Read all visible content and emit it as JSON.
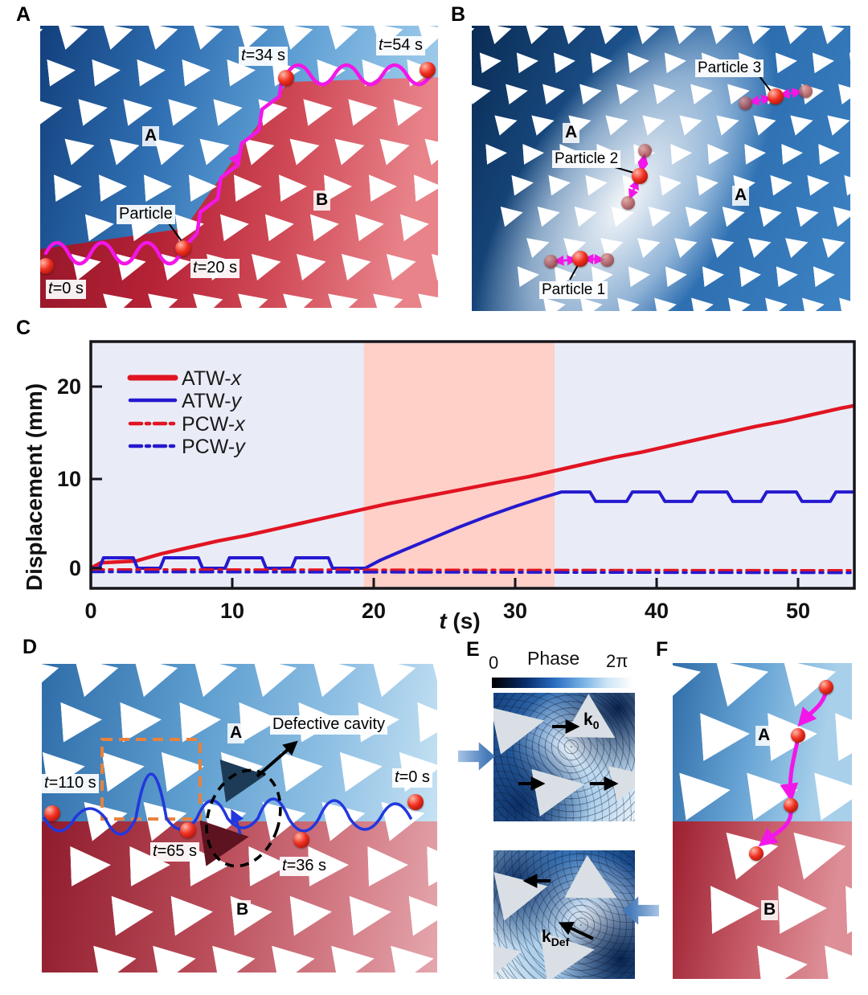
{
  "panels": {
    "a": {
      "letter": "A",
      "region_top": "A",
      "region_bottom": "B",
      "particle_label": "Particle",
      "times": {
        "t0": "t=0 s",
        "t20": "t=20 s",
        "t34": "t=34 s",
        "t54": "t=54 s"
      },
      "trajectory_color": "#f316e8"
    },
    "b": {
      "letter": "B",
      "region_left": "A",
      "region_right": "A",
      "particles": [
        "Particle 1",
        "Particle 2",
        "Particle 3"
      ]
    },
    "c": {
      "letter": "C"
    },
    "d": {
      "letter": "D",
      "region_top": "A",
      "region_bottom": "B",
      "cavity_label": "Defective cavity",
      "times": {
        "t110": "t=110 s",
        "t65": "t=65 s",
        "t36": "t=36 s",
        "t0": "t=0 s"
      },
      "trajectory_color": "#2238dd",
      "highlight_box_color": "#e8823c"
    },
    "e": {
      "letter": "E",
      "colorbar_title": "Phase",
      "colorbar_min": "0",
      "colorbar_max": "2π",
      "k0_base": "k",
      "k0_sub": "0",
      "kdef_base": "k",
      "kdef_sub": "Def"
    },
    "f": {
      "letter": "F",
      "region_top": "A",
      "region_bottom": "B"
    }
  },
  "chart_data": {
    "type": "line",
    "title": "",
    "xlabel": "t (s)",
    "xlabel_italic": "t",
    "xlabel_rest": " (s)",
    "ylabel": "Displacement (mm)",
    "xlim": [
      0,
      54
    ],
    "ylim": [
      -2.3,
      25
    ],
    "x_ticks": [
      "0",
      "10",
      "20",
      "30",
      "40",
      "50"
    ],
    "y_ticks": [
      "0",
      "10",
      "20"
    ],
    "grid": false,
    "legend_position": "top-left",
    "plot_bg": "#e9ecf7",
    "highlight_band": {
      "from": 19.3,
      "to": 32.8,
      "color": "#ffd0c7"
    },
    "legend": [
      {
        "name": "ATW-",
        "var": "x",
        "color": "#e11422",
        "dash": "solid"
      },
      {
        "name": "ATW-",
        "var": "y",
        "color": "#2519cf",
        "dash": "solid"
      },
      {
        "name": "PCW-",
        "var": "x",
        "color": "#e11422",
        "dash": "dashdot"
      },
      {
        "name": "PCW-",
        "var": "y",
        "color": "#2519cf",
        "dash": "dashdot"
      }
    ],
    "series": [
      {
        "name": "ATW-x",
        "color": "#e11422",
        "style": "solid",
        "width": 4.5,
        "points": [
          [
            0,
            0
          ],
          [
            0.7,
            0.6
          ],
          [
            3.2,
            0.8
          ],
          [
            5,
            1.6
          ],
          [
            7,
            2.3
          ],
          [
            9,
            3.0
          ],
          [
            11,
            3.6
          ],
          [
            13,
            4.3
          ],
          [
            15,
            5.0
          ],
          [
            17,
            5.7
          ],
          [
            19,
            6.4
          ],
          [
            21,
            7.1
          ],
          [
            23,
            7.7
          ],
          [
            25,
            8.3
          ],
          [
            27,
            8.9
          ],
          [
            29,
            9.5
          ],
          [
            31,
            10.1
          ],
          [
            33,
            10.8
          ],
          [
            35,
            11.5
          ],
          [
            37,
            12.2
          ],
          [
            39,
            12.8
          ],
          [
            41,
            13.5
          ],
          [
            43,
            14.2
          ],
          [
            45,
            14.9
          ],
          [
            47,
            15.6
          ],
          [
            49,
            16.2
          ],
          [
            51,
            16.9
          ],
          [
            53,
            17.6
          ],
          [
            54,
            17.9
          ]
        ]
      },
      {
        "name": "ATW-y",
        "color": "#2519cf",
        "style": "solid",
        "width": 4,
        "points": [
          [
            0,
            0
          ],
          [
            0.6,
            0
          ],
          [
            0.9,
            1.15
          ],
          [
            3.0,
            1.15
          ],
          [
            3.3,
            0
          ],
          [
            4.9,
            0
          ],
          [
            5.2,
            1.15
          ],
          [
            7.6,
            1.15
          ],
          [
            7.9,
            0
          ],
          [
            9.5,
            0
          ],
          [
            9.8,
            1.15
          ],
          [
            12.1,
            1.15
          ],
          [
            12.4,
            0
          ],
          [
            14.2,
            0
          ],
          [
            14.5,
            1.15
          ],
          [
            16.8,
            1.15
          ],
          [
            17.1,
            0
          ],
          [
            19.4,
            0
          ],
          [
            20.5,
            0.9
          ],
          [
            22,
            1.9
          ],
          [
            24,
            3.2
          ],
          [
            26,
            4.5
          ],
          [
            28,
            5.7
          ],
          [
            30,
            6.8
          ],
          [
            32,
            7.8
          ],
          [
            33.3,
            8.4
          ],
          [
            35.3,
            8.4
          ],
          [
            35.7,
            7.35
          ],
          [
            37.9,
            7.35
          ],
          [
            38.3,
            8.4
          ],
          [
            40.2,
            8.4
          ],
          [
            40.6,
            7.35
          ],
          [
            42.5,
            7.35
          ],
          [
            42.9,
            8.4
          ],
          [
            45.0,
            8.4
          ],
          [
            45.4,
            7.35
          ],
          [
            47.4,
            7.35
          ],
          [
            47.8,
            8.4
          ],
          [
            49.9,
            8.4
          ],
          [
            50.3,
            7.35
          ],
          [
            52.3,
            7.35
          ],
          [
            52.7,
            8.4
          ],
          [
            54,
            8.4
          ]
        ]
      },
      {
        "name": "PCW-x",
        "color": "#e11422",
        "style": "dashdot",
        "width": 3.5,
        "points": [
          [
            0,
            -0.15
          ],
          [
            54,
            -0.25
          ]
        ]
      },
      {
        "name": "PCW-y",
        "color": "#2519cf",
        "style": "dashdot",
        "width": 3.5,
        "points": [
          [
            0,
            -0.4
          ],
          [
            54,
            -0.5
          ]
        ]
      }
    ]
  }
}
